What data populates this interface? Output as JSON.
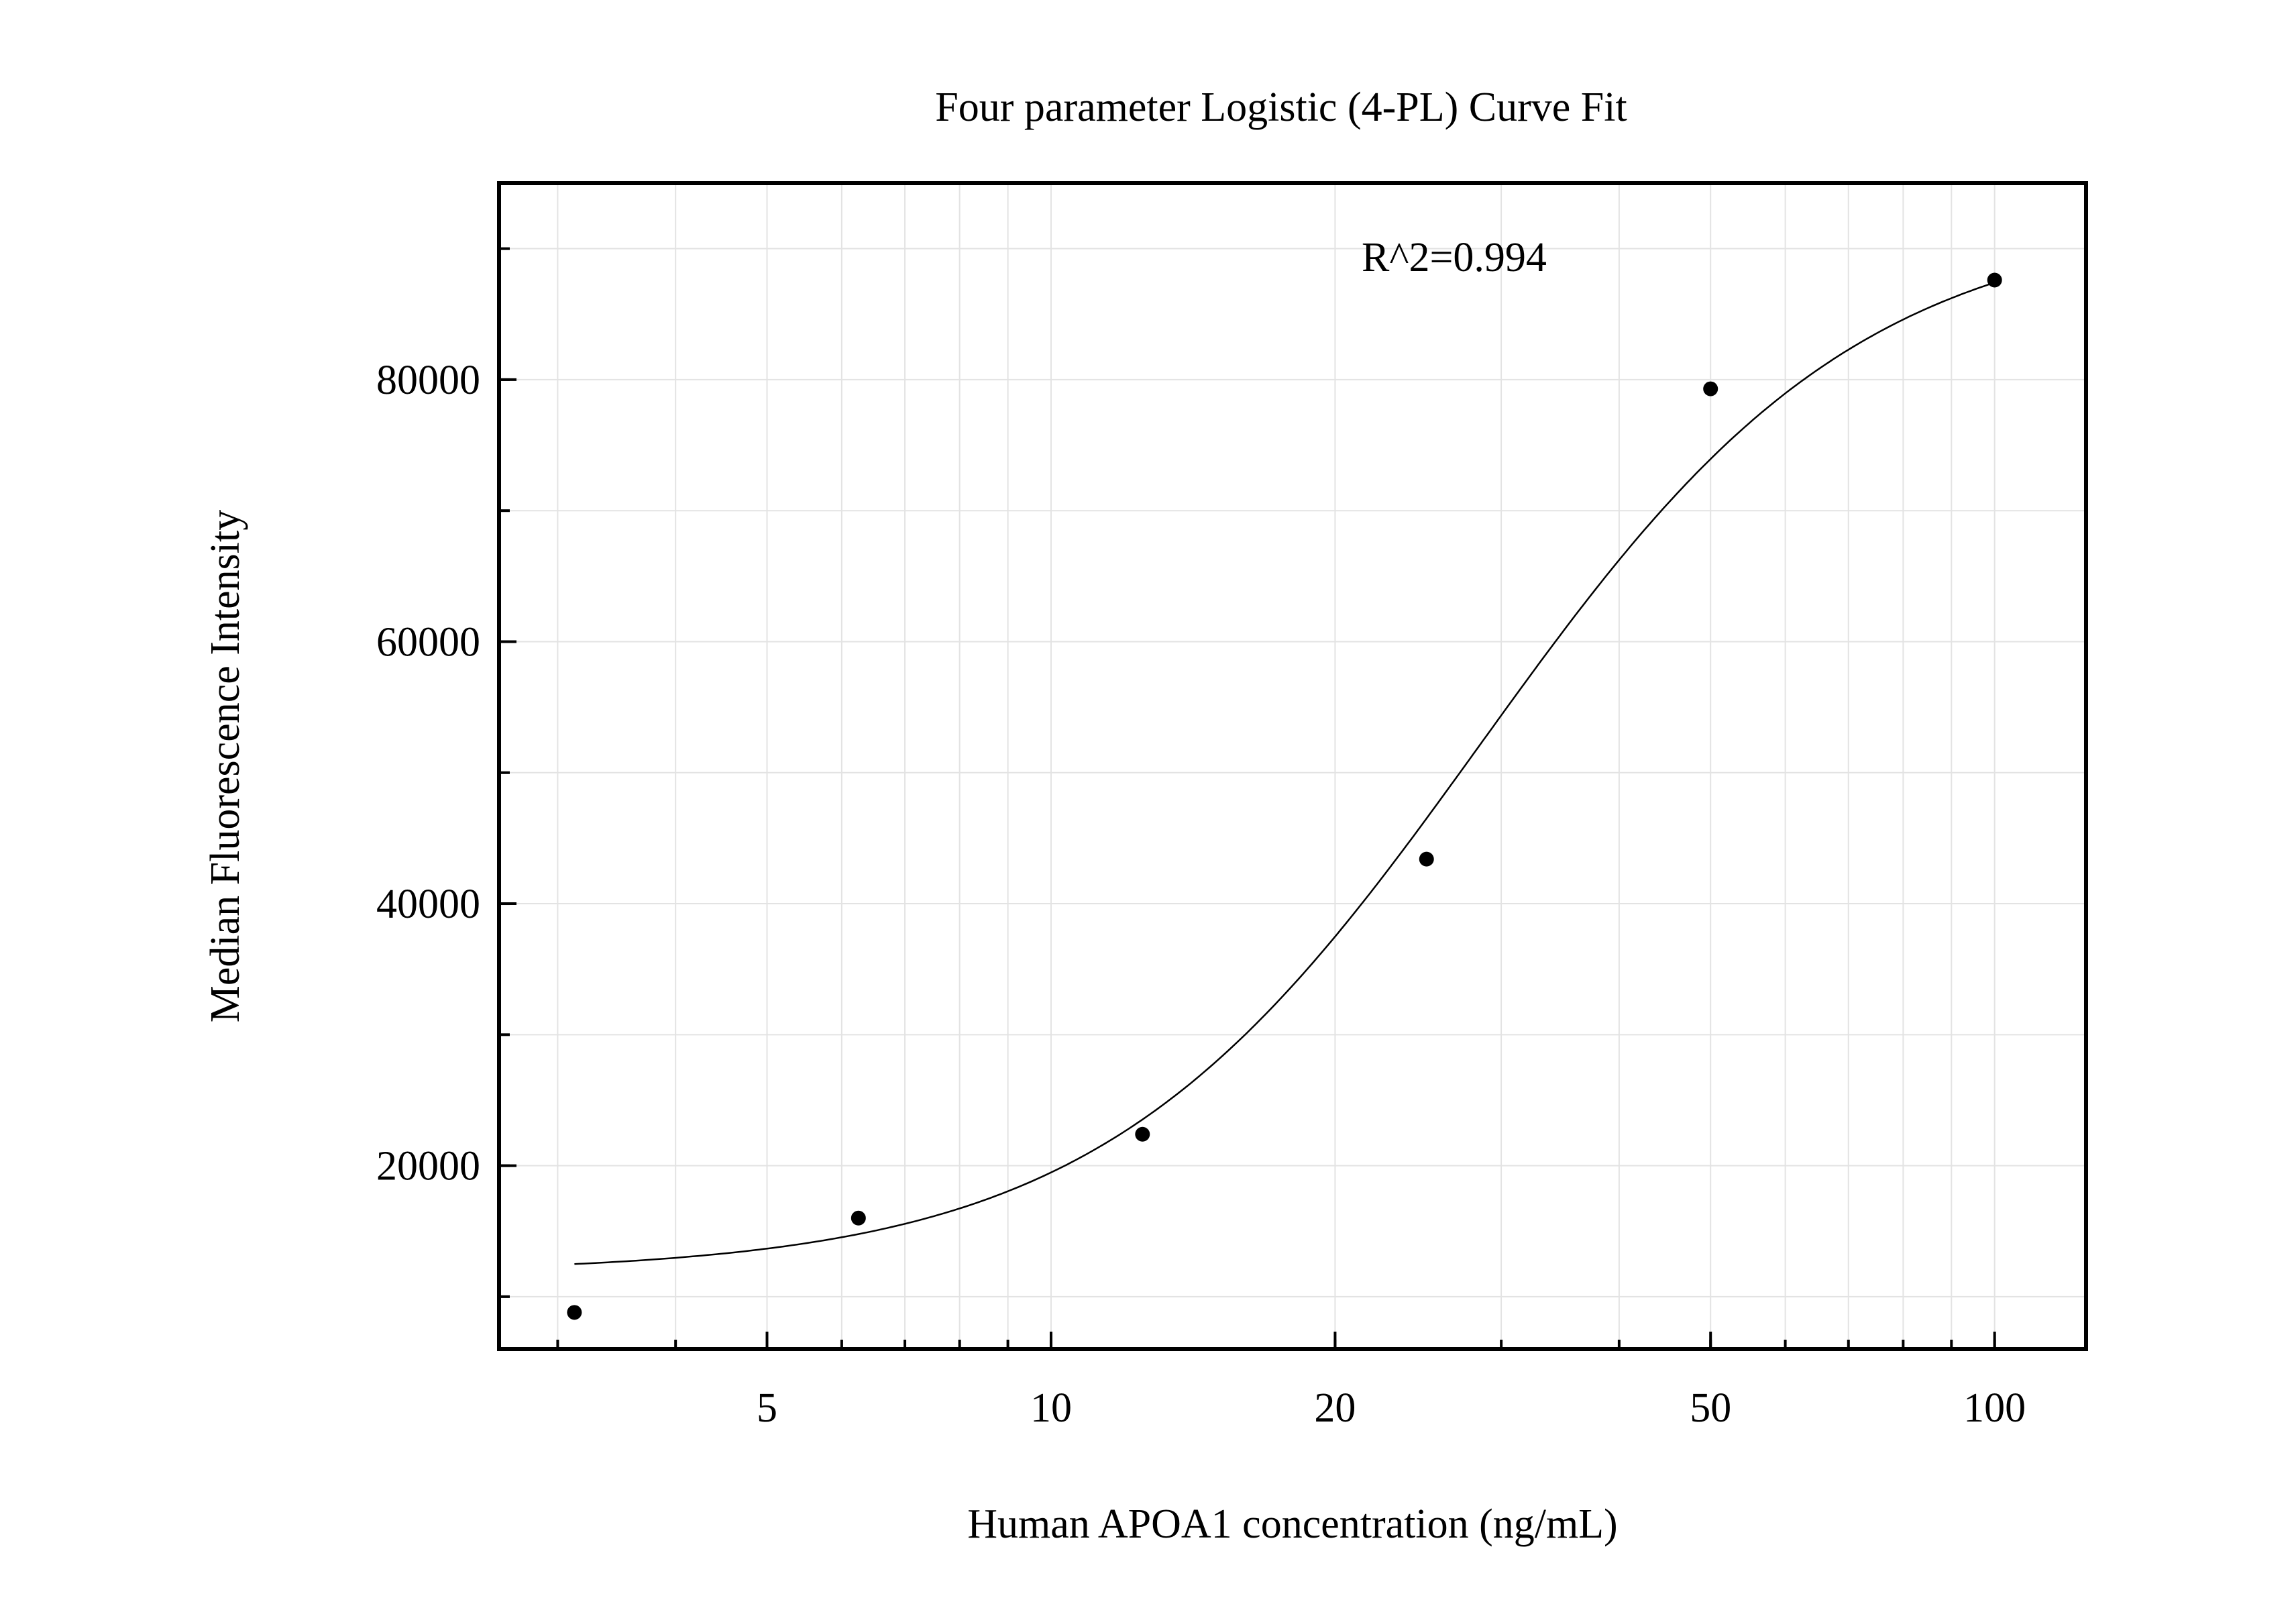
{
  "chart_data": {
    "type": "scatter",
    "title": "Four parameter Logistic (4-PL) Curve Fit",
    "xlabel": "Human APOA1 concentration (ng/mL)",
    "ylabel": "Median Fluorescence Intensity",
    "x_scale": "log",
    "xlim": [
      2.6,
      125
    ],
    "ylim": [
      6000,
      95000
    ],
    "x_ticks": [
      5,
      10,
      20,
      50,
      100
    ],
    "x_tick_labels": [
      "5",
      "10",
      "20",
      "50",
      "100"
    ],
    "y_ticks": [
      20000,
      40000,
      60000,
      80000
    ],
    "y_tick_labels": [
      "20000",
      "40000",
      "60000",
      "80000"
    ],
    "grid": true,
    "annotation": "R^2=0.994",
    "series": [
      {
        "kind": "points",
        "x": [
          3.125,
          6.25,
          12.5,
          25,
          50,
          100
        ],
        "y": [
          8800,
          16000,
          22400,
          43400,
          79300,
          87600
        ]
      },
      {
        "kind": "fit",
        "model": "4PL",
        "params": {
          "bottom": 11800,
          "top": 92500,
          "ec50": 28.5,
          "hill": 2.15
        },
        "x_range": [
          3.125,
          100
        ]
      }
    ]
  }
}
